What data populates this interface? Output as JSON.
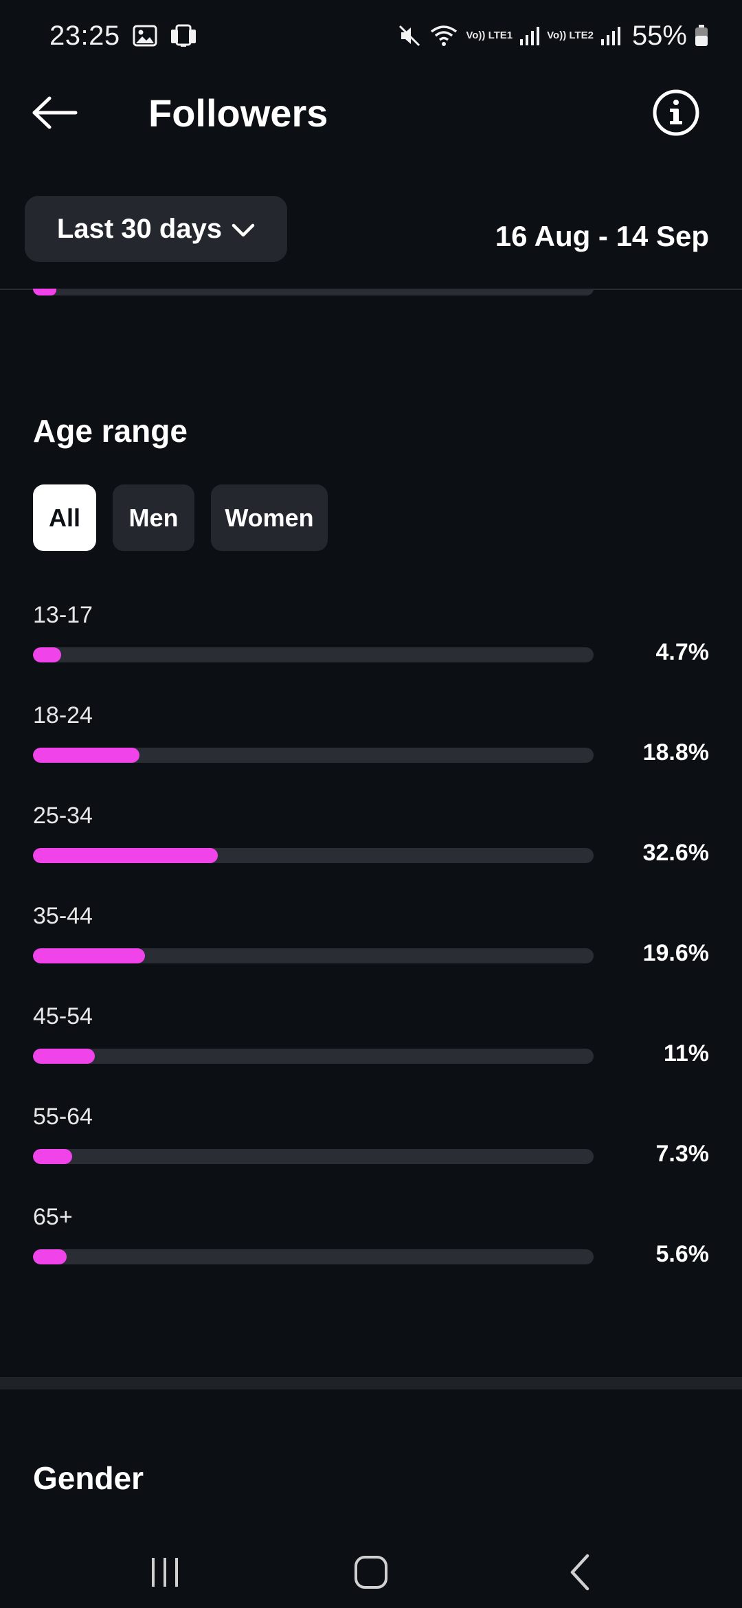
{
  "status_bar": {
    "time": "23:25",
    "sim1": "Vo)) LTE1",
    "sim2": "Vo)) LTE2",
    "battery": "55%"
  },
  "header": {
    "title": "Followers",
    "back_icon": "arrow-left-icon",
    "info_icon": "info-icon"
  },
  "filter": {
    "range_label": "Last 30 days",
    "date_range": "16 Aug - 14 Sep"
  },
  "age_range": {
    "title": "Age range",
    "tabs": [
      {
        "label": "All",
        "active": true
      },
      {
        "label": "Men",
        "active": false
      },
      {
        "label": "Women",
        "active": false
      }
    ],
    "rows": [
      {
        "label": "13-17",
        "value": "4.7%",
        "fraction": 0.05
      },
      {
        "label": "18-24",
        "value": "18.8%",
        "fraction": 0.19
      },
      {
        "label": "25-34",
        "value": "32.6%",
        "fraction": 0.33
      },
      {
        "label": "35-44",
        "value": "19.6%",
        "fraction": 0.2
      },
      {
        "label": "45-54",
        "value": "11%",
        "fraction": 0.11
      },
      {
        "label": "55-64",
        "value": "7.3%",
        "fraction": 0.07
      },
      {
        "label": "65+",
        "value": "5.6%",
        "fraction": 0.06
      }
    ]
  },
  "gender": {
    "title": "Gender"
  },
  "colors": {
    "background": "#0c0f14",
    "bar_fill": "#f043ea",
    "bar_track": "#2a2d33",
    "chip_bg": "#24272d"
  }
}
